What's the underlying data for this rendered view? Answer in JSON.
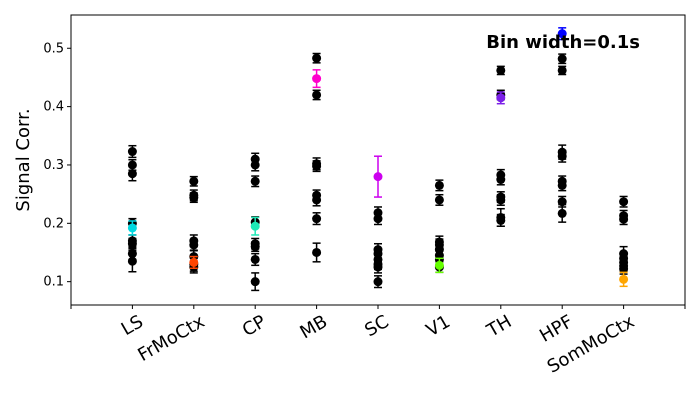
{
  "chart_data": {
    "type": "scatter",
    "title": "",
    "annotation": "Bin width=0.1s",
    "xlabel": "",
    "ylabel": "Signal Corr.",
    "ylim": [
      0.06,
      0.557
    ],
    "yticks": [
      0.1,
      0.2,
      0.3,
      0.4,
      0.5
    ],
    "grid": false,
    "legend": "none",
    "categories": [
      "LS",
      "FrMoCtx",
      "CP",
      "MB",
      "SC",
      "V1",
      "TH",
      "HPF",
      "SomMoCtx"
    ],
    "series": [
      {
        "name": "",
        "color": "#000000",
        "points": [
          {
            "x": "LS",
            "y": 0.323,
            "err": 0.01
          },
          {
            "x": "LS",
            "y": 0.3,
            "err": 0.009
          },
          {
            "x": "LS",
            "y": 0.285,
            "err": 0.012
          },
          {
            "x": "LS",
            "y": 0.2,
            "err": 0.008
          },
          {
            "x": "LS",
            "y": 0.17,
            "err": 0.01
          },
          {
            "x": "LS",
            "y": 0.165,
            "err": 0.009
          },
          {
            "x": "LS",
            "y": 0.148,
            "err": 0.01
          },
          {
            "x": "LS",
            "y": 0.135,
            "err": 0.018
          },
          {
            "x": "FrMoCtx",
            "y": 0.272,
            "err": 0.008
          },
          {
            "x": "FrMoCtx",
            "y": 0.248,
            "err": 0.009
          },
          {
            "x": "FrMoCtx",
            "y": 0.244,
            "err": 0.008
          },
          {
            "x": "FrMoCtx",
            "y": 0.17,
            "err": 0.01
          },
          {
            "x": "FrMoCtx",
            "y": 0.163,
            "err": 0.009
          },
          {
            "x": "FrMoCtx",
            "y": 0.143,
            "err": 0.01
          },
          {
            "x": "FrMoCtx",
            "y": 0.13,
            "err": 0.012
          },
          {
            "x": "FrMoCtx",
            "y": 0.125,
            "err": 0.01
          },
          {
            "x": "CP",
            "y": 0.31,
            "err": 0.01
          },
          {
            "x": "CP",
            "y": 0.3,
            "err": 0.01
          },
          {
            "x": "CP",
            "y": 0.272,
            "err": 0.009
          },
          {
            "x": "CP",
            "y": 0.202,
            "err": 0.009
          },
          {
            "x": "CP",
            "y": 0.165,
            "err": 0.009
          },
          {
            "x": "CP",
            "y": 0.16,
            "err": 0.008
          },
          {
            "x": "CP",
            "y": 0.138,
            "err": 0.01
          },
          {
            "x": "CP",
            "y": 0.1,
            "err": 0.015
          },
          {
            "x": "MB",
            "y": 0.483,
            "err": 0.008
          },
          {
            "x": "MB",
            "y": 0.42,
            "err": 0.008
          },
          {
            "x": "MB",
            "y": 0.302,
            "err": 0.01
          },
          {
            "x": "MB",
            "y": 0.298,
            "err": 0.009
          },
          {
            "x": "MB",
            "y": 0.248,
            "err": 0.009
          },
          {
            "x": "MB",
            "y": 0.24,
            "err": 0.01
          },
          {
            "x": "MB",
            "y": 0.208,
            "err": 0.01
          },
          {
            "x": "MB",
            "y": 0.15,
            "err": 0.016
          },
          {
            "x": "SC",
            "y": 0.218,
            "err": 0.01
          },
          {
            "x": "SC",
            "y": 0.208,
            "err": 0.01
          },
          {
            "x": "SC",
            "y": 0.155,
            "err": 0.01
          },
          {
            "x": "SC",
            "y": 0.148,
            "err": 0.009
          },
          {
            "x": "SC",
            "y": 0.138,
            "err": 0.01
          },
          {
            "x": "SC",
            "y": 0.13,
            "err": 0.009
          },
          {
            "x": "SC",
            "y": 0.125,
            "err": 0.01
          },
          {
            "x": "SC",
            "y": 0.1,
            "err": 0.01
          },
          {
            "x": "V1",
            "y": 0.265,
            "err": 0.009
          },
          {
            "x": "V1",
            "y": 0.24,
            "err": 0.009
          },
          {
            "x": "V1",
            "y": 0.168,
            "err": 0.01
          },
          {
            "x": "V1",
            "y": 0.163,
            "err": 0.01
          },
          {
            "x": "V1",
            "y": 0.155,
            "err": 0.01
          },
          {
            "x": "V1",
            "y": 0.145,
            "err": 0.009
          },
          {
            "x": "V1",
            "y": 0.138,
            "err": 0.009
          },
          {
            "x": "V1",
            "y": 0.125,
            "err": 0.009
          },
          {
            "x": "TH",
            "y": 0.462,
            "err": 0.007
          },
          {
            "x": "TH",
            "y": 0.42,
            "err": 0.008
          },
          {
            "x": "TH",
            "y": 0.283,
            "err": 0.009
          },
          {
            "x": "TH",
            "y": 0.275,
            "err": 0.009
          },
          {
            "x": "TH",
            "y": 0.245,
            "err": 0.009
          },
          {
            "x": "TH",
            "y": 0.24,
            "err": 0.009
          },
          {
            "x": "TH",
            "y": 0.21,
            "err": 0.015
          },
          {
            "x": "TH",
            "y": 0.205,
            "err": 0.01
          },
          {
            "x": "HPF",
            "y": 0.482,
            "err": 0.008
          },
          {
            "x": "HPF",
            "y": 0.462,
            "err": 0.007
          },
          {
            "x": "HPF",
            "y": 0.322,
            "err": 0.012
          },
          {
            "x": "HPF",
            "y": 0.315,
            "err": 0.01
          },
          {
            "x": "HPF",
            "y": 0.272,
            "err": 0.009
          },
          {
            "x": "HPF",
            "y": 0.265,
            "err": 0.009
          },
          {
            "x": "HPF",
            "y": 0.237,
            "err": 0.009
          },
          {
            "x": "HPF",
            "y": 0.217,
            "err": 0.015
          },
          {
            "x": "SomMoCtx",
            "y": 0.237,
            "err": 0.009
          },
          {
            "x": "SomMoCtx",
            "y": 0.213,
            "err": 0.009
          },
          {
            "x": "SomMoCtx",
            "y": 0.207,
            "err": 0.009
          },
          {
            "x": "SomMoCtx",
            "y": 0.148,
            "err": 0.012
          },
          {
            "x": "SomMoCtx",
            "y": 0.14,
            "err": 0.01
          },
          {
            "x": "SomMoCtx",
            "y": 0.133,
            "err": 0.009
          },
          {
            "x": "SomMoCtx",
            "y": 0.127,
            "err": 0.009
          },
          {
            "x": "SomMoCtx",
            "y": 0.122,
            "err": 0.009
          }
        ]
      },
      {
        "name": "",
        "color": "#00d8e0",
        "points": [
          {
            "x": "LS",
            "y": 0.192,
            "err": 0.012
          }
        ]
      },
      {
        "name": "",
        "color": "#ff4500",
        "points": [
          {
            "x": "FrMoCtx",
            "y": 0.133,
            "err": 0.01
          }
        ]
      },
      {
        "name": "",
        "color": "#1de9b6",
        "points": [
          {
            "x": "CP",
            "y": 0.195,
            "err": 0.015
          }
        ]
      },
      {
        "name": "",
        "color": "#ff00cc",
        "points": [
          {
            "x": "MB",
            "y": 0.448,
            "err": 0.015
          }
        ]
      },
      {
        "name": "",
        "color": "#cc00ee",
        "points": [
          {
            "x": "SC",
            "y": 0.28,
            "err": 0.035
          }
        ]
      },
      {
        "name": "",
        "color": "#66ff00",
        "points": [
          {
            "x": "V1",
            "y": 0.128,
            "err": 0.012
          }
        ]
      },
      {
        "name": "",
        "color": "#7b1fe8",
        "points": [
          {
            "x": "TH",
            "y": 0.415,
            "err": 0.01
          }
        ]
      },
      {
        "name": "",
        "color": "#0000ff",
        "points": [
          {
            "x": "HPF",
            "y": 0.525,
            "err": 0.01
          }
        ]
      },
      {
        "name": "",
        "color": "#ffa500",
        "points": [
          {
            "x": "SomMoCtx",
            "y": 0.104,
            "err": 0.012
          }
        ]
      }
    ]
  }
}
